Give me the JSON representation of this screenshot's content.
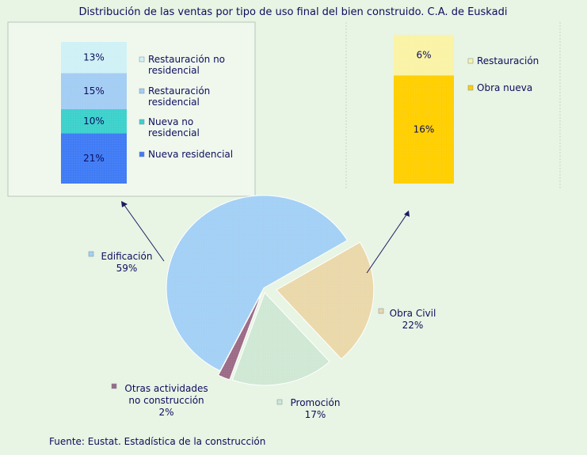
{
  "title": "Distribución de las ventas por tipo de uso final del bien construido. C.A. de Euskadi",
  "source": "Fuente: Eustat. Estadística de la construcción",
  "chart_data": [
    {
      "type": "pie",
      "slices": [
        {
          "key": "edif",
          "name": "Edificación",
          "value": 59,
          "label": "59%",
          "color": "#a3d0f5"
        },
        {
          "key": "obra",
          "name": "Obra Civil",
          "value": 22,
          "label": "22%",
          "color": "#ead8aa"
        },
        {
          "key": "prom",
          "name": "Promoción",
          "value": 17,
          "label": "17%",
          "color": "#cfe8d4"
        },
        {
          "key": "otras",
          "name": "Otras actividades no construcción",
          "name_lines": [
            "Otras actividades",
            "no construcción"
          ],
          "value": 2,
          "label": "2%",
          "color": "#9b6a86"
        }
      ]
    },
    {
      "type": "bar",
      "stacked": true,
      "series": [
        {
          "name": "Nueva residencial",
          "value": 21,
          "label": "21%",
          "color": "#3f7bf5"
        },
        {
          "name": "Nueva no residencial",
          "name_lines": [
            "Nueva no",
            "residencial"
          ],
          "value": 10,
          "label": "10%",
          "color": "#3cd1cc"
        },
        {
          "name": "Restauración residencial",
          "name_lines": [
            "Restauración",
            "residencial"
          ],
          "value": 15,
          "label": "15%",
          "color": "#a3cdf4"
        },
        {
          "name": "Restauración no residencial",
          "name_lines": [
            "Restauración no",
            "residencial"
          ],
          "value": 13,
          "label": "13%",
          "color": "#cff1f5"
        }
      ]
    },
    {
      "type": "bar",
      "stacked": true,
      "series": [
        {
          "name": "Obra nueva",
          "value": 16,
          "label": "16%",
          "color": "#ffcf00"
        },
        {
          "name": "Restauración",
          "value": 6,
          "label": "6%",
          "color": "#faf3a6"
        }
      ]
    }
  ]
}
